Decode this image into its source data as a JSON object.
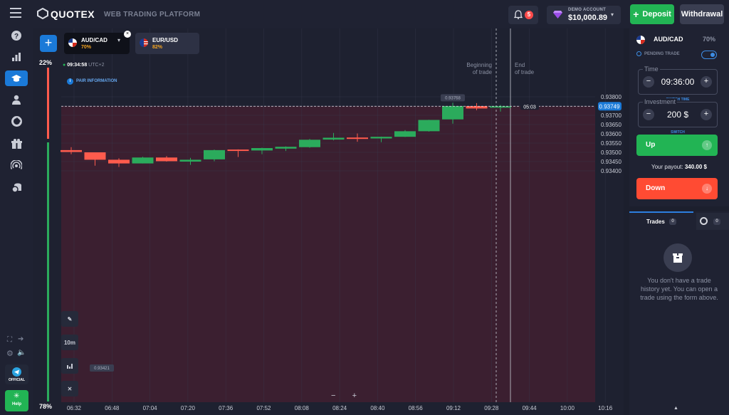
{
  "brand": {
    "name": "QUOTEX",
    "tagline": "WEB TRADING PLATFORM"
  },
  "header": {
    "notification_count": "5",
    "account_label": "DEMO ACCOUNT",
    "balance": "$10,000.89",
    "deposit_label": "Deposit",
    "withdrawal_label": "Withdrawal"
  },
  "sidebar": {
    "items": [
      "help-circle",
      "analytics",
      "trading",
      "profile",
      "market",
      "tournaments",
      "signals",
      "top-up"
    ],
    "official_label": "OFFICIAL",
    "help_label": "Help"
  },
  "tabs": [
    {
      "pair": "AUD/CAD",
      "payout": "70%"
    },
    {
      "pair": "EUR/USD",
      "payout": "82%"
    }
  ],
  "sentiment": {
    "top": "22%",
    "bottom": "78%"
  },
  "clock": {
    "time": "09:34:58",
    "timezone": "UTC+2"
  },
  "pair_info_label": "PAIR INFORMATION",
  "tools": {
    "timeframe": "10m"
  },
  "chart": {
    "current_price_label": "0.93749",
    "countdown": "05:03",
    "high_label": "0.93768",
    "low_label": "0.93421",
    "beginning_label": [
      "Beginning",
      "of trade"
    ],
    "end_label": [
      "End",
      "of trade"
    ],
    "zoom_minus": "−",
    "zoom_plus": "+",
    "colors": {
      "up": "#2bab5c",
      "down": "#ff5b4d",
      "accent": "#1b7ad8"
    }
  },
  "chart_data": {
    "type": "candlestick",
    "price_ticks": [
      0.938,
      0.9375,
      0.937,
      0.9365,
      0.936,
      0.9355,
      0.935,
      0.9345,
      0.934
    ],
    "price_labels": [
      "0.93800",
      "0.93750",
      "0.93700",
      "0.93650",
      "0.93600",
      "0.93550",
      "0.93500",
      "0.93450",
      "0.93400"
    ],
    "time_labels": [
      "06:32",
      "06:48",
      "07:04",
      "07:20",
      "07:36",
      "07:52",
      "08:08",
      "08:24",
      "08:40",
      "08:56",
      "09:12",
      "09:28",
      "09:44",
      "10:00",
      "10:16"
    ],
    "current_price": 0.93749,
    "candles": [
      {
        "o": 0.93512,
        "h": 0.93528,
        "l": 0.9349,
        "c": 0.93502
      },
      {
        "o": 0.935,
        "h": 0.935,
        "l": 0.93428,
        "c": 0.9346
      },
      {
        "o": 0.9346,
        "h": 0.93468,
        "l": 0.93421,
        "c": 0.9344
      },
      {
        "o": 0.9344,
        "h": 0.93476,
        "l": 0.9344,
        "c": 0.93472
      },
      {
        "o": 0.93472,
        "h": 0.9348,
        "l": 0.9345,
        "c": 0.93452
      },
      {
        "o": 0.9345,
        "h": 0.9347,
        "l": 0.93432,
        "c": 0.9346
      },
      {
        "o": 0.93462,
        "h": 0.93515,
        "l": 0.93452,
        "c": 0.93512
      },
      {
        "o": 0.93515,
        "h": 0.93516,
        "l": 0.93475,
        "c": 0.93512
      },
      {
        "o": 0.9351,
        "h": 0.93525,
        "l": 0.9349,
        "c": 0.93523
      },
      {
        "o": 0.9352,
        "h": 0.93532,
        "l": 0.93507,
        "c": 0.9353
      },
      {
        "o": 0.93528,
        "h": 0.93572,
        "l": 0.93525,
        "c": 0.93568
      },
      {
        "o": 0.93569,
        "h": 0.93605,
        "l": 0.93565,
        "c": 0.93579
      },
      {
        "o": 0.9358,
        "h": 0.93602,
        "l": 0.93557,
        "c": 0.93577
      },
      {
        "o": 0.93575,
        "h": 0.93585,
        "l": 0.93555,
        "c": 0.93584
      },
      {
        "o": 0.93584,
        "h": 0.9362,
        "l": 0.93583,
        "c": 0.93614
      },
      {
        "o": 0.93614,
        "h": 0.93676,
        "l": 0.93612,
        "c": 0.93675
      },
      {
        "o": 0.93678,
        "h": 0.93768,
        "l": 0.93655,
        "c": 0.9375
      },
      {
        "o": 0.9375,
        "h": 0.93766,
        "l": 0.93728,
        "c": 0.93737
      },
      {
        "o": 0.93742,
        "h": 0.93756,
        "l": 0.9372,
        "c": 0.93749
      }
    ]
  },
  "panel": {
    "pair": "AUD/CAD",
    "payout": "70%",
    "pending_label": "PENDING TRADE",
    "time_label": "Time",
    "time_value": "09:36:00",
    "time_switch": "SWITCH TIME",
    "investment_label": "Investment",
    "investment_value": "200 $",
    "investment_switch": "SWITCH",
    "up_label": "Up",
    "down_label": "Down",
    "payout_label": "Your payout:",
    "payout_value": "340.00 $"
  },
  "trades": {
    "tab_label": "Trades",
    "count": "0",
    "history_count": "0",
    "empty_text": "You don't have a trade history yet. You can open a trade using the form above."
  }
}
